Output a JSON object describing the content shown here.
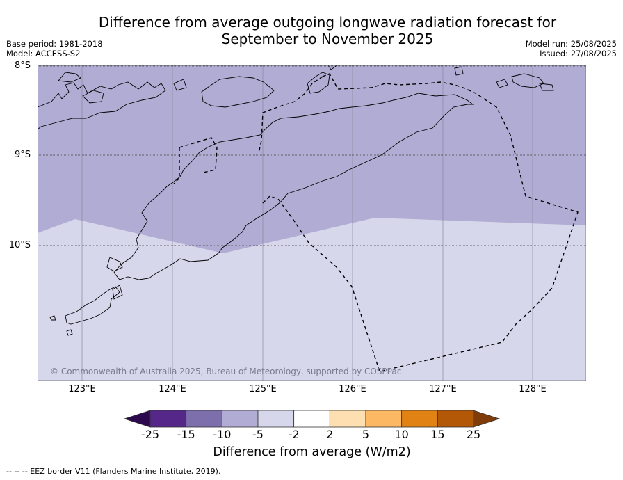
{
  "title": {
    "line1": "Difference from average outgoing longwave radiation forecast for",
    "line2": "September to November 2025"
  },
  "meta": {
    "base_period": "Base period: 1981-2018",
    "model": "Model: ACCESS-S2",
    "model_run": "Model run: 25/08/2025",
    "issued": "Issued: 27/08/2025"
  },
  "map": {
    "lat_labels": [
      "8°S",
      "9°S",
      "10°S"
    ],
    "lon_labels": [
      "123°E",
      "124°E",
      "125°E",
      "126°E",
      "127°E",
      "128°E"
    ],
    "copyright": "© Commonwealth of Australia 2025, Bureau of Meteorology, supported by COSPPac",
    "regions": [
      {
        "category": "-10 to -5",
        "color": "#b0acd3"
      },
      {
        "category": "-5 to -2",
        "color": "#d6d7ea"
      }
    ]
  },
  "colorbar": {
    "ticks": [
      "-25",
      "-15",
      "-10",
      "-5",
      "-2",
      "2",
      "5",
      "10",
      "15",
      "25"
    ],
    "colors": [
      "#2d0a4e",
      "#542788",
      "#7d6fac",
      "#b0acd3",
      "#d6d7ea",
      "#ffffff",
      "#fddfb2",
      "#fdb863",
      "#e08214",
      "#b35806",
      "#7f3b08"
    ],
    "label": "Difference from average (W/m2)"
  },
  "footnote": "--  --  -- EEZ border V11 (Flanders Marine Institute, 2019)."
}
